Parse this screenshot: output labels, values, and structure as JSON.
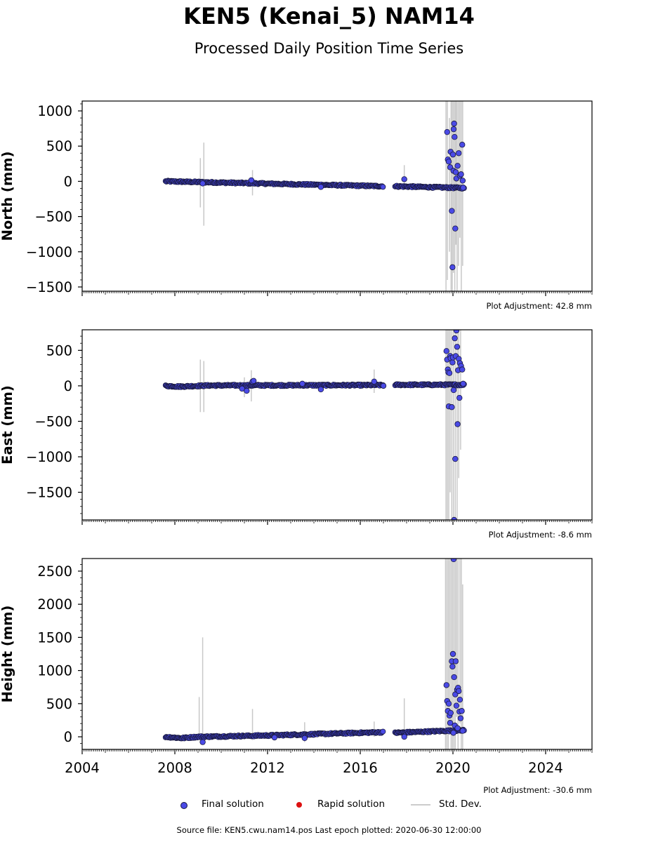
{
  "title": "KEN5 (Kenai_5) NAM14",
  "subtitle": "Processed Daily Position Time Series",
  "source_text": "Source file: KEN5.cwu.nam14.pos  Last epoch plotted: 2020-06-30 12:00:00",
  "legend": {
    "final": "Final solution",
    "rapid": "Rapid solution",
    "std": "Std. Dev."
  },
  "colors": {
    "final": "#4a4ae6",
    "rapid": "#dd1111",
    "std": "#bbbbbb",
    "marker_edge": "#1a1a40"
  },
  "chart_data": [
    {
      "type": "scatter",
      "ylabel": "North (mm)",
      "adjustment": "Plot Adjustment: 42.8 mm",
      "xlim": [
        2004,
        2026
      ],
      "ylim": [
        -1560,
        1140
      ],
      "yticks": [
        1000,
        500,
        0,
        -500,
        -1000,
        -1500
      ],
      "xtick_labels": [],
      "trend": [
        [
          2007.6,
          0
        ],
        [
          2017.0,
          -70
        ],
        [
          2017.5,
          -70
        ],
        [
          2020.5,
          -95
        ]
      ],
      "points": [
        [
          2009.2,
          -30
        ],
        [
          2011.3,
          15
        ],
        [
          2014.3,
          -80
        ],
        [
          2017.9,
          30
        ],
        [
          2019.75,
          700
        ],
        [
          2019.78,
          310
        ],
        [
          2019.82,
          280
        ],
        [
          2019.88,
          200
        ],
        [
          2019.9,
          420
        ],
        [
          2019.95,
          -420
        ],
        [
          2019.98,
          -1220
        ],
        [
          2020.0,
          380
        ],
        [
          2020.02,
          150
        ],
        [
          2020.03,
          740
        ],
        [
          2020.05,
          820
        ],
        [
          2020.07,
          630
        ],
        [
          2020.1,
          -670
        ],
        [
          2020.12,
          130
        ],
        [
          2020.15,
          40
        ],
        [
          2020.2,
          220
        ],
        [
          2020.25,
          400
        ],
        [
          2020.3,
          80
        ],
        [
          2020.35,
          100
        ],
        [
          2020.4,
          520
        ],
        [
          2020.42,
          10
        ],
        [
          2020.44,
          -90
        ]
      ],
      "errorbars": [
        [
          2009.1,
          -370,
          330
        ],
        [
          2009.25,
          -630,
          550
        ],
        [
          2011.35,
          -200,
          160
        ],
        [
          2017.9,
          -20,
          230
        ],
        [
          2019.7,
          -1560,
          1140
        ],
        [
          2019.76,
          -1400,
          1140
        ],
        [
          2019.85,
          -1000,
          900
        ],
        [
          2019.92,
          -1560,
          1140
        ],
        [
          2019.97,
          -1560,
          1140
        ],
        [
          2020.02,
          -1300,
          1140
        ],
        [
          2020.08,
          -1560,
          1140
        ],
        [
          2020.13,
          -900,
          1140
        ],
        [
          2020.18,
          -1560,
          1140
        ],
        [
          2020.24,
          -1200,
          1140
        ],
        [
          2020.3,
          -800,
          1140
        ],
        [
          2020.36,
          -1560,
          1140
        ],
        [
          2020.42,
          -1200,
          1140
        ]
      ]
    },
    {
      "type": "scatter",
      "ylabel": "East (mm)",
      "adjustment": "Plot Adjustment: -8.6 mm",
      "xlim": [
        2004,
        2026
      ],
      "ylim": [
        -1890,
        790
      ],
      "yticks": [
        500,
        0,
        -500,
        -1000,
        -1500
      ],
      "xtick_labels": [],
      "trend": [
        [
          2007.6,
          0
        ],
        [
          2008.2,
          -10
        ],
        [
          2009.5,
          5
        ],
        [
          2017.0,
          10
        ],
        [
          2017.5,
          15
        ],
        [
          2020.5,
          15
        ]
      ],
      "points": [
        [
          2010.9,
          -40
        ],
        [
          2011.1,
          -70
        ],
        [
          2011.35,
          60
        ],
        [
          2011.4,
          70
        ],
        [
          2013.5,
          30
        ],
        [
          2014.3,
          -50
        ],
        [
          2016.6,
          60
        ],
        [
          2017.0,
          0
        ],
        [
          2019.72,
          490
        ],
        [
          2019.75,
          370
        ],
        [
          2019.78,
          230
        ],
        [
          2019.8,
          190
        ],
        [
          2019.82,
          -290
        ],
        [
          2019.85,
          180
        ],
        [
          2019.88,
          420
        ],
        [
          2019.9,
          390
        ],
        [
          2019.95,
          -300
        ],
        [
          2019.98,
          330
        ],
        [
          2020.0,
          400
        ],
        [
          2020.03,
          -60
        ],
        [
          2020.05,
          -1890
        ],
        [
          2020.08,
          670
        ],
        [
          2020.1,
          -1030
        ],
        [
          2020.12,
          420
        ],
        [
          2020.15,
          780
        ],
        [
          2020.18,
          550
        ],
        [
          2020.2,
          -540
        ],
        [
          2020.22,
          220
        ],
        [
          2020.25,
          380
        ],
        [
          2020.28,
          -170
        ],
        [
          2020.3,
          320
        ],
        [
          2020.35,
          280
        ],
        [
          2020.4,
          230
        ],
        [
          2020.44,
          30
        ]
      ],
      "errorbars": [
        [
          2009.1,
          -370,
          370
        ],
        [
          2009.25,
          -370,
          350
        ],
        [
          2011.3,
          -220,
          220
        ],
        [
          2011.0,
          -160,
          120
        ],
        [
          2016.6,
          -100,
          230
        ],
        [
          2017.9,
          -10,
          40
        ],
        [
          2019.7,
          -1890,
          790
        ],
        [
          2019.76,
          -1890,
          790
        ],
        [
          2019.82,
          -1890,
          790
        ],
        [
          2019.88,
          -1500,
          790
        ],
        [
          2019.95,
          -1890,
          790
        ],
        [
          2020.02,
          -1890,
          790
        ],
        [
          2020.1,
          -1890,
          790
        ],
        [
          2020.18,
          -1890,
          790
        ],
        [
          2020.25,
          -1300,
          790
        ],
        [
          2020.33,
          -900,
          790
        ]
      ]
    },
    {
      "type": "scatter",
      "ylabel": "Height (mm)",
      "adjustment": "Plot Adjustment: -30.6 mm",
      "xlim": [
        2004,
        2026
      ],
      "ylim": [
        -190,
        2690
      ],
      "yticks": [
        2500,
        2000,
        1500,
        1000,
        500,
        0
      ],
      "xtick_labels": [
        "2004",
        "2008",
        "2012",
        "2016",
        "2020",
        "2024"
      ],
      "trend": [
        [
          2007.6,
          0
        ],
        [
          2008.3,
          -20
        ],
        [
          2009.0,
          0
        ],
        [
          2012.0,
          20
        ],
        [
          2014.0,
          40
        ],
        [
          2017.0,
          70
        ],
        [
          2017.5,
          60
        ],
        [
          2020.5,
          100
        ]
      ],
      "points": [
        [
          2009.2,
          -80
        ],
        [
          2012.3,
          -10
        ],
        [
          2013.6,
          -20
        ],
        [
          2017.9,
          0
        ],
        [
          2019.72,
          780
        ],
        [
          2019.75,
          540
        ],
        [
          2019.78,
          390
        ],
        [
          2019.82,
          500
        ],
        [
          2019.85,
          320
        ],
        [
          2019.88,
          210
        ],
        [
          2019.9,
          360
        ],
        [
          2019.95,
          1140
        ],
        [
          2019.98,
          1060
        ],
        [
          2020.0,
          1250
        ],
        [
          2020.02,
          60
        ],
        [
          2020.03,
          2680
        ],
        [
          2020.05,
          900
        ],
        [
          2020.08,
          170
        ],
        [
          2020.1,
          640
        ],
        [
          2020.12,
          1140
        ],
        [
          2020.15,
          470
        ],
        [
          2020.18,
          710
        ],
        [
          2020.2,
          130
        ],
        [
          2020.22,
          740
        ],
        [
          2020.25,
          690
        ],
        [
          2020.28,
          380
        ],
        [
          2020.3,
          560
        ],
        [
          2020.33,
          280
        ],
        [
          2020.38,
          390
        ],
        [
          2020.42,
          90
        ]
      ],
      "errorbars": [
        [
          2009.05,
          0,
          600
        ],
        [
          2009.2,
          -30,
          1500
        ],
        [
          2011.35,
          -50,
          420
        ],
        [
          2013.6,
          -80,
          220
        ],
        [
          2016.6,
          0,
          230
        ],
        [
          2017.9,
          20,
          580
        ],
        [
          2019.68,
          -190,
          2690
        ],
        [
          2019.74,
          -190,
          2690
        ],
        [
          2019.8,
          -190,
          2690
        ],
        [
          2019.86,
          100,
          2690
        ],
        [
          2019.92,
          -190,
          2690
        ],
        [
          2019.98,
          -190,
          2690
        ],
        [
          2020.04,
          -190,
          2690
        ],
        [
          2020.1,
          -190,
          2690
        ],
        [
          2020.16,
          300,
          2690
        ],
        [
          2020.22,
          -190,
          2690
        ],
        [
          2020.3,
          200,
          2690
        ],
        [
          2020.36,
          -190,
          2690
        ],
        [
          2020.42,
          -190,
          2300
        ]
      ]
    }
  ]
}
